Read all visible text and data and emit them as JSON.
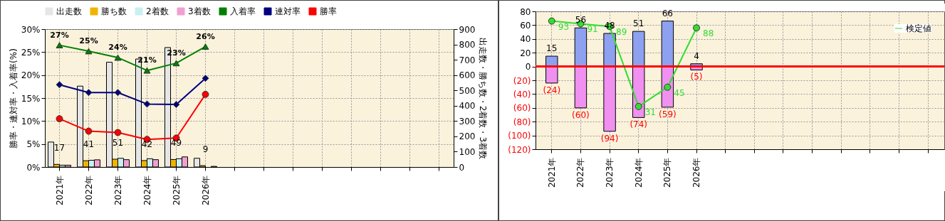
{
  "chart_data": [
    {
      "type": "bar",
      "categories": [
        "2021年",
        "2022年",
        "2023年",
        "2024年",
        "2025年",
        "2026年",
        null,
        null,
        null,
        null,
        null,
        null,
        null,
        null
      ],
      "series": [
        {
          "name": "出走数",
          "color": "#e6e6e6",
          "axis": "y2",
          "values": [
            163,
            528,
            684,
            705,
            780,
            57,
            null,
            null,
            null,
            null,
            null,
            null,
            null,
            null
          ]
        },
        {
          "name": "勝ち数",
          "color": "#f0b400",
          "axis": "y2",
          "values": [
            17,
            41,
            51,
            42,
            49,
            9,
            null,
            null,
            null,
            null,
            null,
            null,
            null,
            null
          ],
          "value_labels": [
            "17",
            "41",
            "51",
            "42",
            "49",
            "9",
            null,
            null,
            null,
            null,
            null,
            null,
            null,
            null
          ]
        },
        {
          "name": "2着数",
          "color": "#c8f0f0",
          "axis": "y2",
          "values": [
            12,
            44,
            57,
            54,
            54,
            null,
            null,
            null,
            null,
            null,
            null,
            null,
            null,
            null
          ]
        },
        {
          "name": "3着数",
          "color": "#f0a0d0",
          "axis": "y2",
          "values": [
            12,
            47,
            48,
            48,
            66,
            4,
            null,
            null,
            null,
            null,
            null,
            null,
            null,
            null
          ]
        },
        {
          "name": "入着率",
          "type": "line",
          "color": "#008000",
          "marker": "triangle",
          "values": [
            26.5,
            25.2,
            23.8,
            21.0,
            22.6,
            26.2,
            null,
            null,
            null,
            null,
            null,
            null,
            null,
            null
          ],
          "value_labels": [
            "27%",
            "25%",
            "24%",
            "21%",
            "23%",
            "26%",
            null,
            null,
            null,
            null,
            null,
            null,
            null,
            null
          ]
        },
        {
          "name": "連対率",
          "type": "line",
          "color": "#000080",
          "marker": "diamond",
          "values": [
            17.9,
            16.2,
            16.2,
            13.7,
            13.6,
            19.3,
            null,
            null,
            null,
            null,
            null,
            null,
            null,
            null
          ]
        },
        {
          "name": "勝率",
          "type": "line",
          "color": "#ff0000",
          "marker": "circle",
          "values": [
            10.5,
            7.8,
            7.5,
            6.0,
            6.3,
            15.8,
            null,
            null,
            null,
            null,
            null,
            null,
            null,
            null
          ]
        }
      ],
      "ylabel": "勝率・連対率・入着率(%)",
      "y2label": "出走数・勝ち数・2着数・3着数",
      "ylim": [
        0,
        30
      ],
      "yticks": [
        {
          "value": 0,
          "label": "0%"
        },
        {
          "value": 5,
          "label": "5%"
        },
        {
          "value": 10,
          "label": "10%"
        },
        {
          "value": 15,
          "label": "15%"
        },
        {
          "value": 20,
          "label": "20%"
        },
        {
          "value": 25,
          "label": "25%"
        },
        {
          "value": 30,
          "label": "30%"
        }
      ],
      "y2lim": [
        0,
        900
      ],
      "y2ticks": [
        0,
        100,
        200,
        300,
        400,
        500,
        600,
        700,
        800,
        900
      ],
      "grid": true,
      "legend": "top"
    },
    {
      "type": "bar",
      "stacked": true,
      "categories": [
        "2021年",
        "2022年",
        "2023年",
        "2024年",
        "2025年",
        "2026年",
        null,
        null,
        null,
        null,
        null,
        null,
        null,
        null
      ],
      "series": [
        {
          "color": "#8ea0f0",
          "values": [
            15,
            56,
            48,
            51,
            66,
            4,
            null,
            null,
            null,
            null,
            null,
            null,
            null,
            null
          ],
          "value_labels": [
            "15",
            "56",
            "48",
            "51",
            "66",
            "4",
            null,
            null,
            null,
            null,
            null,
            null,
            null,
            null
          ]
        },
        {
          "color": "#f090f0",
          "values": [
            -24,
            -60,
            -94,
            -74,
            -59,
            -5,
            null,
            null,
            null,
            null,
            null,
            null,
            null,
            null
          ],
          "value_labels": [
            "(24)",
            "(60)",
            "(94)",
            "(74)",
            "(59)",
            "(5)",
            null,
            null,
            null,
            null,
            null,
            null,
            null,
            null
          ]
        },
        {
          "name": "検定値",
          "type": "line",
          "color": "#33dd33",
          "marker": "circle",
          "axis": "y2",
          "values": [
            93,
            91,
            89,
            31,
            45,
            88,
            null,
            null,
            null,
            null,
            null,
            null,
            null,
            null
          ]
        }
      ],
      "data_labels": true,
      "y2lim": [
        0,
        100
      ],
      "ylim": [
        -120,
        80
      ],
      "yticks": [
        80,
        60,
        40,
        20,
        0,
        {
          "value": -20,
          "label": "(20)"
        },
        {
          "value": -40,
          "label": "(40)"
        },
        {
          "value": -60,
          "label": "(60)"
        },
        {
          "value": -80,
          "label": "(80)"
        },
        {
          "value": -100,
          "label": "(100)"
        },
        {
          "value": -120,
          "label": "(120)"
        }
      ],
      "ref_lines": [
        {
          "axis": "y",
          "value": 0,
          "color": "#ff0000"
        }
      ],
      "grid": true,
      "legend": "top right"
    }
  ]
}
